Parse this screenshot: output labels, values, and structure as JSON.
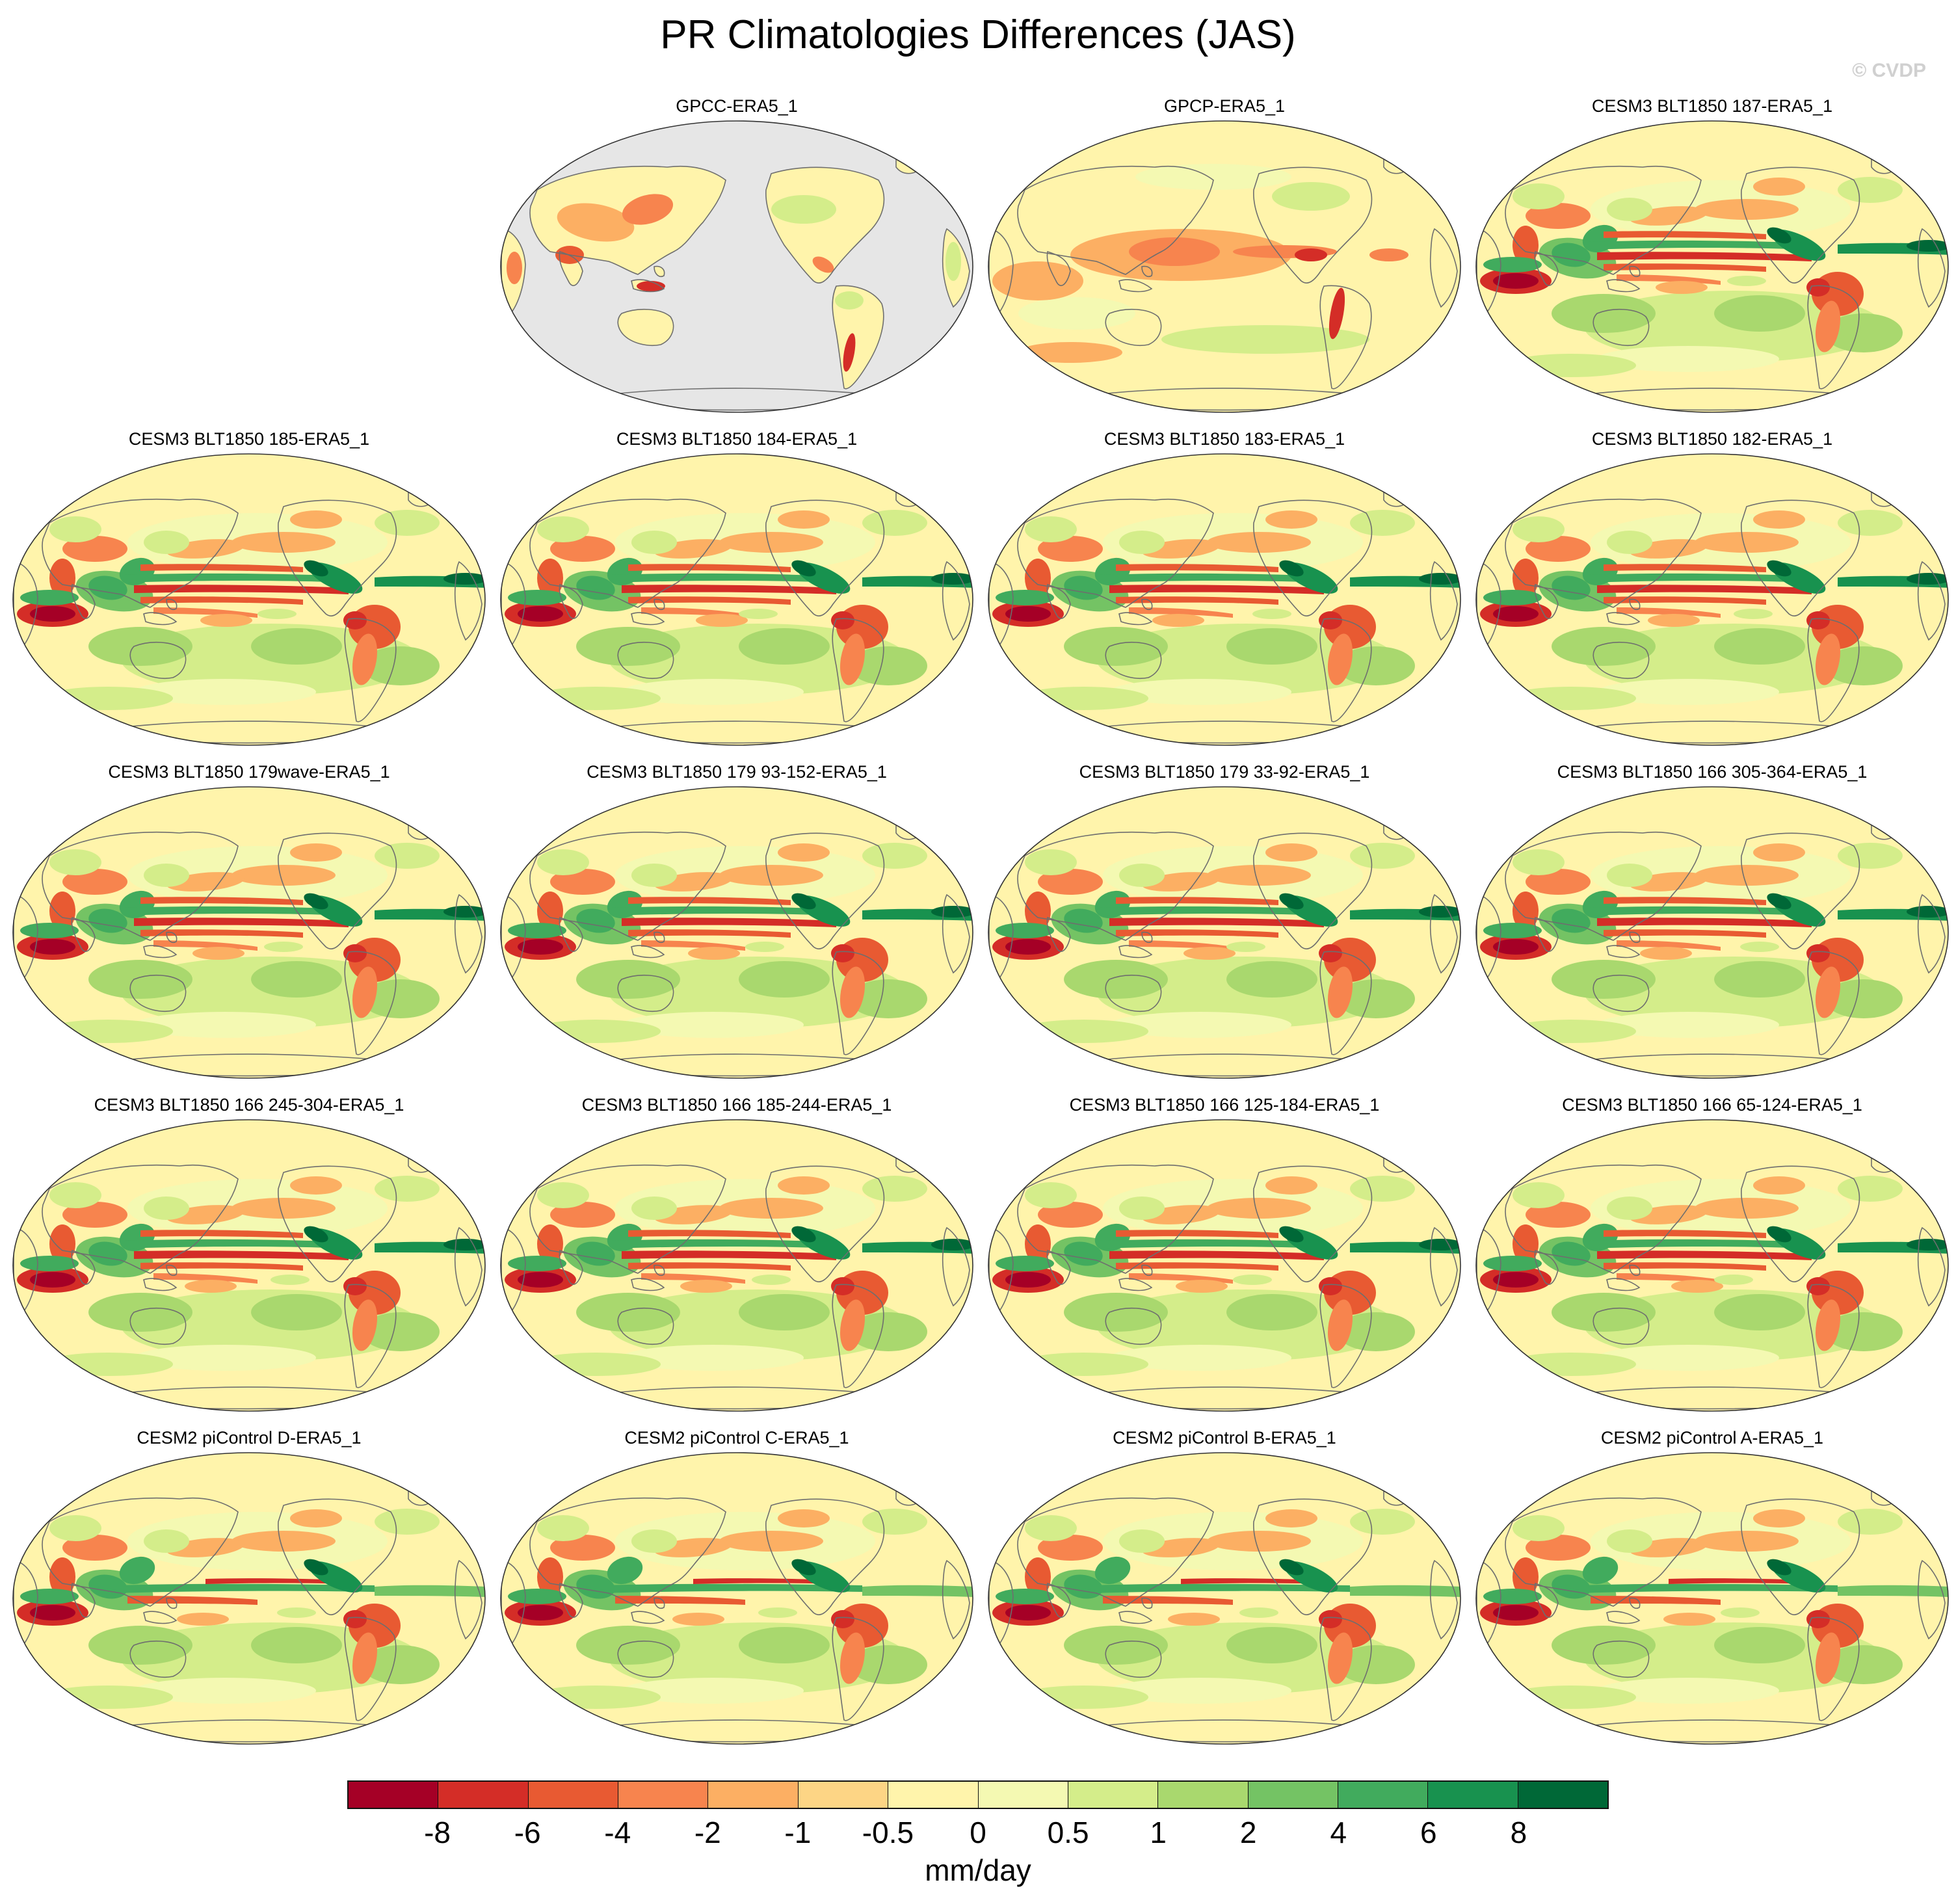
{
  "title": "PR Climatologies Differences (JAS)",
  "watermark": "© CVDP",
  "colors": {
    "land_mask": "#e6e6e6",
    "coast": "#6e6e6e",
    "neutral": "#fcf0a8"
  },
  "panels": [
    {
      "title": "GPCC-ERA5_1",
      "style": "gpcc"
    },
    {
      "title": "GPCP-ERA5_1",
      "style": "gpcp"
    },
    {
      "title": "CESM3 BLT1850 187-ERA5_1",
      "style": "cesm3"
    },
    {
      "title": "CESM3 BLT1850 185-ERA5_1",
      "style": "cesm3"
    },
    {
      "title": "CESM3 BLT1850 184-ERA5_1",
      "style": "cesm3"
    },
    {
      "title": "CESM3 BLT1850 183-ERA5_1",
      "style": "cesm3"
    },
    {
      "title": "CESM3 BLT1850 182-ERA5_1",
      "style": "cesm3"
    },
    {
      "title": "CESM3 BLT1850 179wave-ERA5_1",
      "style": "cesm3"
    },
    {
      "title": "CESM3 BLT1850 179 93-152-ERA5_1",
      "style": "cesm3"
    },
    {
      "title": "CESM3 BLT1850 179 33-92-ERA5_1",
      "style": "cesm3"
    },
    {
      "title": "CESM3 BLT1850 166 305-364-ERA5_1",
      "style": "cesm3"
    },
    {
      "title": "CESM3 BLT1850 166 245-304-ERA5_1",
      "style": "cesm3"
    },
    {
      "title": "CESM3 BLT1850 166 185-244-ERA5_1",
      "style": "cesm3"
    },
    {
      "title": "CESM3 BLT1850 166 125-184-ERA5_1",
      "style": "cesm3"
    },
    {
      "title": "CESM3 BLT1850 166 65-124-ERA5_1",
      "style": "cesm3"
    },
    {
      "title": "CESM2 piControl D-ERA5_1",
      "style": "cesm2"
    },
    {
      "title": "CESM2 piControl C-ERA5_1",
      "style": "cesm2"
    },
    {
      "title": "CESM2 piControl B-ERA5_1",
      "style": "cesm2"
    },
    {
      "title": "CESM2 piControl A-ERA5_1",
      "style": "cesm2"
    }
  ],
  "colorbar": {
    "unit": "mm/day",
    "labels": [
      "-8",
      "-6",
      "-4",
      "-2",
      "-1",
      "-0.5",
      "0",
      "0.5",
      "1",
      "2",
      "4",
      "6",
      "8"
    ],
    "colors": [
      "#a50026",
      "#d42d27",
      "#e85a32",
      "#f7844e",
      "#fcaf63",
      "#fdd585",
      "#fff4ab",
      "#f4f9b2",
      "#d4ed8a",
      "#a9d86e",
      "#74c364",
      "#41ab5d",
      "#18924f",
      "#006837"
    ]
  }
}
